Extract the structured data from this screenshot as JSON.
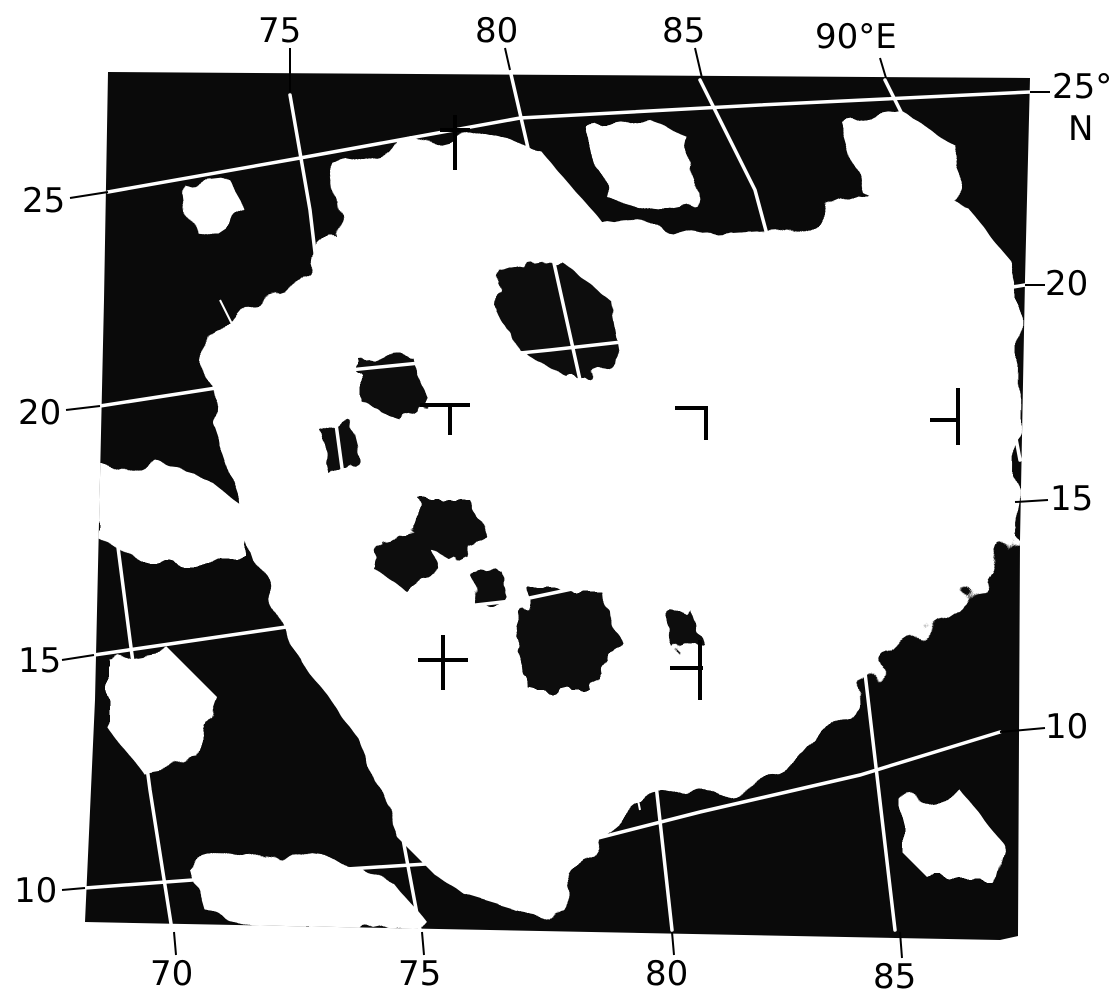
{
  "map": {
    "top_labels": [
      "75",
      "80",
      "85",
      "90°E"
    ],
    "right_labels": [
      "25°",
      "N",
      "20",
      "15",
      "10"
    ],
    "left_labels": [
      "25",
      "20",
      "15",
      "10"
    ],
    "bottom_labels": [
      "70",
      "75",
      "80",
      "85"
    ],
    "colors": {
      "cloud": "#ffffff",
      "ground": "#0a0a0a",
      "grid": "#ffffff",
      "ink": "#000000"
    }
  }
}
